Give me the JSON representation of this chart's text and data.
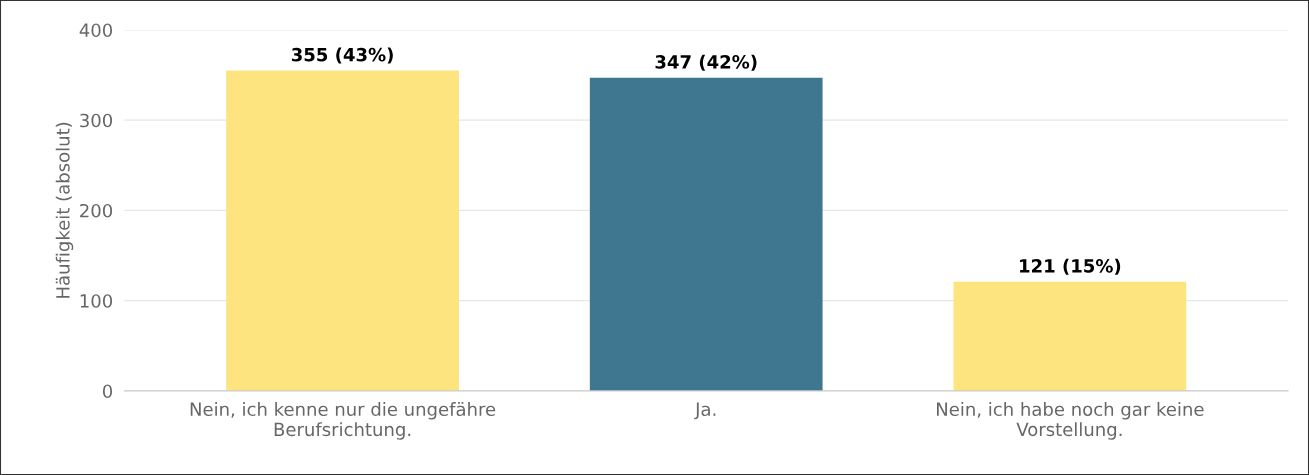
{
  "chart_data": {
    "type": "bar",
    "ylabel": "Häufigkeit (absolut)",
    "categories": [
      "Nein, ich kenne nur die ungefähre\nBerufsrichtung.",
      "Ja.",
      "Nein, ich habe noch gar keine\nVorstellung."
    ],
    "values": [
      355,
      347,
      121
    ],
    "colors": [
      "#fde47f",
      "#3e778f",
      "#fde47f"
    ],
    "value_labels": [
      "355 (43%)",
      "347 (42%)",
      "121 (15%)"
    ],
    "ylim": [
      0,
      400
    ],
    "yticks": [
      0,
      100,
      200,
      300,
      400
    ],
    "grid": "y",
    "legend": false
  }
}
